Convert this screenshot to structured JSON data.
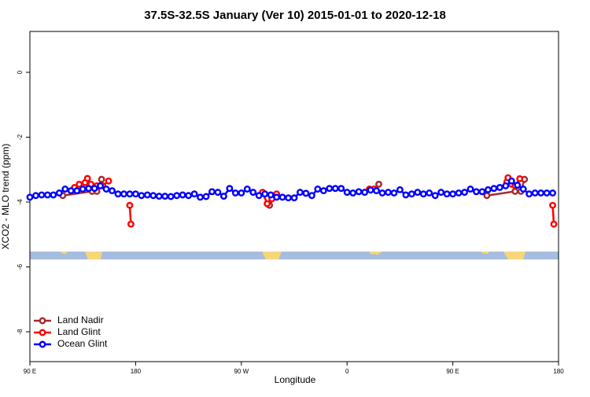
{
  "chart_data": {
    "type": "line",
    "title": "37.5S-32.5S January (Ver 10)   2015-01-01 to 2020-12-18",
    "x_label": "Longitude",
    "y_label": "XCO2 - MLO trend (ppm)",
    "xlim": [
      90,
      540
    ],
    "ylim": [
      -8.92,
      1.26
    ],
    "xticks": [
      {
        "value": 90,
        "label": "90 E"
      },
      {
        "value": 180,
        "label": "180"
      },
      {
        "value": 270,
        "label": "90 W"
      },
      {
        "value": 360,
        "label": "0"
      },
      {
        "value": 450,
        "label": "90 E"
      },
      {
        "value": 540,
        "label": "180"
      }
    ],
    "yticks": [
      -8,
      -6,
      -4,
      -2,
      0
    ],
    "legend": "bottom-left",
    "series": [
      {
        "name": "Land Nadir",
        "color": "#a52a2a",
        "x": [
          118,
          143,
          147,
          151,
          200,
          294,
          298,
          350,
          387,
          420,
          479,
          503,
          508,
          511
        ],
        "values": [
          -3.8,
          -3.67,
          -3.67,
          -3.3,
          null,
          -4.1,
          -3.85,
          null,
          -3.45,
          null,
          -3.8,
          -3.67,
          -3.67,
          -3.3
        ]
      },
      {
        "name": "Land Glint",
        "color": "#ff0000",
        "x": [
          128,
          132,
          137,
          139,
          142,
          147,
          152,
          157,
          165,
          175,
          176,
          230,
          288,
          292,
          296,
          300,
          340,
          379,
          383,
          450,
          496,
          497,
          500,
          503,
          507,
          520,
          535,
          536
        ],
        "values": [
          -3.55,
          -3.45,
          -3.4,
          -3.27,
          -3.45,
          -3.5,
          -3.5,
          -3.35,
          null,
          -4.1,
          -4.68,
          null,
          -3.7,
          -4.05,
          -3.9,
          -3.75,
          null,
          -3.6,
          -3.6,
          null,
          -3.38,
          -3.25,
          -3.45,
          -3.5,
          -3.28,
          null,
          -4.1,
          -4.68
        ]
      },
      {
        "name": "Ocean Glint",
        "color": "#0000ff",
        "x": [
          90,
          95,
          100,
          105,
          110,
          115,
          120,
          125,
          130,
          135,
          140,
          145,
          150,
          155,
          160,
          165,
          170,
          175,
          180,
          185,
          190,
          195,
          200,
          205,
          210,
          215,
          220,
          225,
          230,
          235,
          240,
          245,
          250,
          255,
          260,
          265,
          270,
          275,
          280,
          285,
          290,
          295,
          300,
          305,
          310,
          315,
          320,
          325,
          330,
          335,
          340,
          345,
          350,
          355,
          360,
          365,
          370,
          375,
          380,
          385,
          390,
          395,
          400,
          405,
          410,
          415,
          420,
          425,
          430,
          435,
          440,
          445,
          450,
          455,
          460,
          465,
          470,
          475,
          480,
          485,
          490,
          495,
          500,
          505,
          510,
          515,
          520,
          525,
          530,
          535
        ],
        "values": [
          -3.85,
          -3.8,
          -3.78,
          -3.78,
          -3.78,
          -3.72,
          -3.6,
          -3.65,
          -3.65,
          -3.6,
          -3.58,
          -3.58,
          -3.5,
          -3.6,
          -3.65,
          -3.75,
          -3.75,
          -3.75,
          -3.75,
          -3.8,
          -3.78,
          -3.8,
          -3.82,
          -3.82,
          -3.83,
          -3.8,
          -3.78,
          -3.8,
          -3.75,
          -3.85,
          -3.83,
          -3.68,
          -3.7,
          -3.82,
          -3.58,
          -3.72,
          -3.72,
          -3.6,
          -3.7,
          -3.8,
          -3.75,
          -3.78,
          -3.85,
          -3.85,
          -3.87,
          -3.87,
          -3.7,
          -3.73,
          -3.8,
          -3.6,
          -3.65,
          -3.58,
          -3.58,
          -3.58,
          -3.7,
          -3.72,
          -3.68,
          -3.7,
          -3.63,
          -3.65,
          -3.72,
          -3.7,
          -3.72,
          -3.62,
          -3.78,
          -3.75,
          -3.7,
          -3.75,
          -3.72,
          -3.8,
          -3.7,
          -3.75,
          -3.75,
          -3.72,
          -3.7,
          -3.6,
          -3.68,
          -3.68,
          -3.62,
          -3.58,
          -3.55,
          -3.5,
          -3.35,
          -3.48,
          -3.6,
          -3.75,
          -3.72,
          -3.72,
          -3.72,
          -3.72
        ]
      }
    ]
  }
}
